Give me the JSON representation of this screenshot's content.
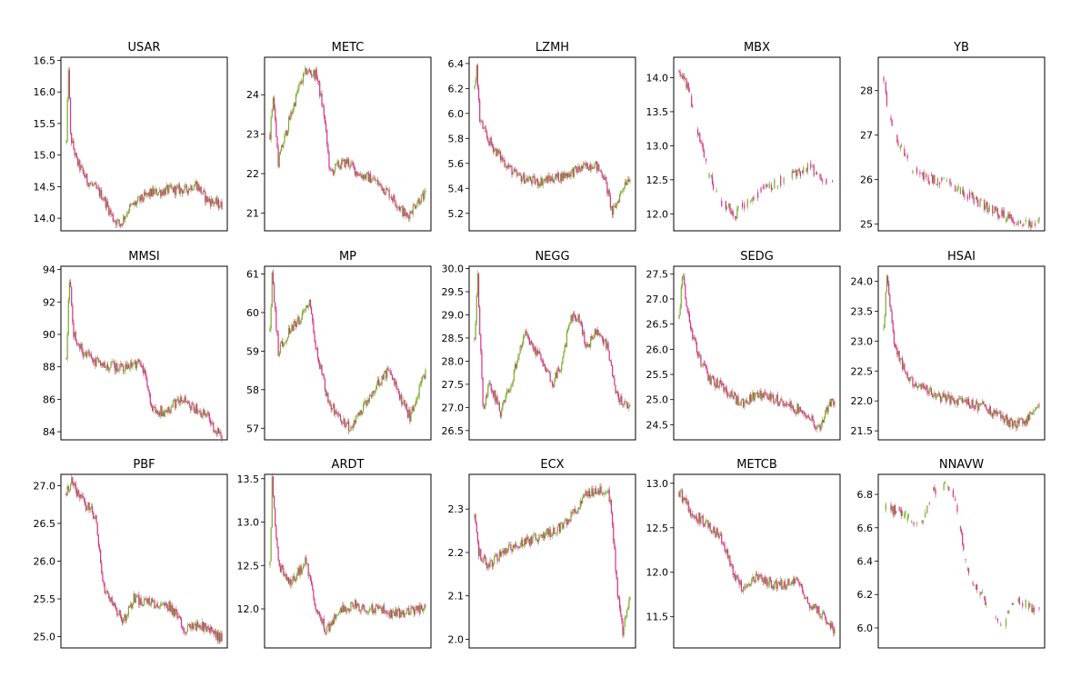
{
  "colors": {
    "up": "#7aab2e",
    "down": "#d63384"
  },
  "charts": [
    {
      "title": "USAR",
      "type": "candlestick",
      "ylim": [
        13.8,
        16.55
      ],
      "yticks": [
        "14.0",
        "14.5",
        "15.0",
        "15.5",
        "16.0",
        "16.5"
      ],
      "anchors": [
        [
          0,
          15.2
        ],
        [
          2,
          16.4
        ],
        [
          4,
          15.3
        ],
        [
          10,
          14.9
        ],
        [
          20,
          14.6
        ],
        [
          35,
          14.35
        ],
        [
          45,
          14.0
        ],
        [
          52,
          13.9
        ],
        [
          60,
          14.15
        ],
        [
          72,
          14.3
        ],
        [
          82,
          14.4
        ],
        [
          100,
          14.45
        ],
        [
          115,
          14.45
        ],
        [
          125,
          14.55
        ],
        [
          135,
          14.3
        ],
        [
          150,
          14.2
        ]
      ]
    },
    {
      "title": "METC",
      "type": "candlestick",
      "ylim": [
        20.55,
        24.95
      ],
      "yticks": [
        "21",
        "22",
        "23",
        "24"
      ],
      "anchors": [
        [
          0,
          23.0
        ],
        [
          3,
          24.0
        ],
        [
          8,
          22.3
        ],
        [
          18,
          23.3
        ],
        [
          28,
          24.2
        ],
        [
          35,
          24.6
        ],
        [
          45,
          24.5
        ],
        [
          52,
          23.5
        ],
        [
          58,
          22.0
        ],
        [
          65,
          22.2
        ],
        [
          75,
          22.3
        ],
        [
          85,
          22.0
        ],
        [
          100,
          21.85
        ],
        [
          115,
          21.5
        ],
        [
          132,
          20.9
        ],
        [
          142,
          21.3
        ],
        [
          150,
          21.45
        ]
      ]
    },
    {
      "title": "LZMH",
      "type": "candlestick",
      "ylim": [
        5.06,
        6.45
      ],
      "yticks": [
        "5.2",
        "5.4",
        "5.6",
        "5.8",
        "6.0",
        "6.2",
        "6.4"
      ],
      "anchors": [
        [
          0,
          6.2
        ],
        [
          2,
          6.38
        ],
        [
          5,
          5.95
        ],
        [
          12,
          5.8
        ],
        [
          25,
          5.65
        ],
        [
          40,
          5.5
        ],
        [
          60,
          5.45
        ],
        [
          85,
          5.5
        ],
        [
          100,
          5.55
        ],
        [
          115,
          5.6
        ],
        [
          125,
          5.5
        ],
        [
          133,
          5.2
        ],
        [
          138,
          5.3
        ],
        [
          145,
          5.45
        ],
        [
          150,
          5.5
        ]
      ]
    },
    {
      "title": "MBX",
      "type": "candlestick",
      "ylim": [
        11.75,
        14.3
      ],
      "yticks": [
        "12.0",
        "12.5",
        "13.0",
        "13.5",
        "14.0"
      ],
      "anchors": [
        [
          0,
          14.1
        ],
        [
          8,
          13.9
        ],
        [
          18,
          13.2
        ],
        [
          28,
          12.6
        ],
        [
          40,
          12.2
        ],
        [
          55,
          12.0
        ],
        [
          70,
          12.25
        ],
        [
          85,
          12.4
        ],
        [
          100,
          12.5
        ],
        [
          115,
          12.6
        ],
        [
          125,
          12.7
        ],
        [
          140,
          12.5
        ],
        [
          150,
          12.45
        ]
      ]
    },
    {
      "title": "YB",
      "type": "candlestick",
      "ylim": [
        24.85,
        28.75
      ],
      "yticks": [
        "25",
        "26",
        "27",
        "28"
      ],
      "anchors": [
        [
          0,
          28.3
        ],
        [
          4,
          27.5
        ],
        [
          15,
          26.8
        ],
        [
          28,
          26.2
        ],
        [
          45,
          26.0
        ],
        [
          65,
          25.9
        ],
        [
          85,
          25.6
        ],
        [
          105,
          25.3
        ],
        [
          125,
          25.1
        ],
        [
          140,
          25.0
        ],
        [
          150,
          25.1
        ]
      ]
    },
    {
      "title": "MMSI",
      "type": "candlestick",
      "ylim": [
        83.5,
        94.2
      ],
      "yticks": [
        "84",
        "86",
        "88",
        "90",
        "92",
        "94"
      ],
      "anchors": [
        [
          0,
          88.5
        ],
        [
          3,
          93.5
        ],
        [
          7,
          90.0
        ],
        [
          15,
          89.0
        ],
        [
          30,
          88.2
        ],
        [
          50,
          88.0
        ],
        [
          68,
          88.2
        ],
        [
          75,
          87.8
        ],
        [
          82,
          85.5
        ],
        [
          95,
          85.2
        ],
        [
          110,
          86.0
        ],
        [
          120,
          85.6
        ],
        [
          135,
          85.0
        ],
        [
          145,
          84.0
        ],
        [
          150,
          83.8
        ]
      ]
    },
    {
      "title": "MP",
      "type": "candlestick",
      "ylim": [
        56.7,
        61.2
      ],
      "yticks": [
        "57",
        "58",
        "59",
        "60",
        "61"
      ],
      "anchors": [
        [
          0,
          59.5
        ],
        [
          2,
          61.0
        ],
        [
          8,
          59.0
        ],
        [
          18,
          59.5
        ],
        [
          28,
          59.8
        ],
        [
          38,
          60.2
        ],
        [
          45,
          59.0
        ],
        [
          55,
          57.8
        ],
        [
          65,
          57.3
        ],
        [
          78,
          57.0
        ],
        [
          90,
          57.5
        ],
        [
          105,
          58.2
        ],
        [
          115,
          58.5
        ],
        [
          125,
          57.8
        ],
        [
          135,
          57.3
        ],
        [
          150,
          58.5
        ]
      ]
    },
    {
      "title": "NEGG",
      "type": "candlestick",
      "ylim": [
        26.3,
        30.05
      ],
      "yticks": [
        "26.5",
        "27.0",
        "27.5",
        "28.0",
        "28.5",
        "29.0",
        "29.5",
        "30.0"
      ],
      "anchors": [
        [
          0,
          28.5
        ],
        [
          3,
          29.8
        ],
        [
          8,
          27.0
        ],
        [
          15,
          27.5
        ],
        [
          25,
          26.9
        ],
        [
          35,
          27.5
        ],
        [
          48,
          28.6
        ],
        [
          60,
          28.2
        ],
        [
          75,
          27.5
        ],
        [
          85,
          28.0
        ],
        [
          92,
          28.9
        ],
        [
          100,
          29.0
        ],
        [
          108,
          28.3
        ],
        [
          118,
          28.7
        ],
        [
          128,
          28.3
        ],
        [
          138,
          27.2
        ],
        [
          150,
          27.0
        ]
      ]
    },
    {
      "title": "SEDG",
      "type": "candlestick",
      "ylim": [
        24.2,
        27.65
      ],
      "yticks": [
        "24.5",
        "25.0",
        "25.5",
        "26.0",
        "26.5",
        "27.0",
        "27.5"
      ],
      "anchors": [
        [
          0,
          26.6
        ],
        [
          3,
          27.5
        ],
        [
          10,
          26.5
        ],
        [
          20,
          25.8
        ],
        [
          30,
          25.4
        ],
        [
          45,
          25.2
        ],
        [
          60,
          24.9
        ],
        [
          75,
          25.1
        ],
        [
          95,
          25.0
        ],
        [
          110,
          24.85
        ],
        [
          125,
          24.7
        ],
        [
          135,
          24.4
        ],
        [
          145,
          24.9
        ],
        [
          150,
          25.0
        ]
      ]
    },
    {
      "title": "HSAI",
      "type": "candlestick",
      "ylim": [
        21.35,
        24.25
      ],
      "yticks": [
        "21.5",
        "22.0",
        "22.5",
        "23.0",
        "23.5",
        "24.0"
      ],
      "anchors": [
        [
          0,
          23.2
        ],
        [
          3,
          24.1
        ],
        [
          10,
          23.0
        ],
        [
          22,
          22.4
        ],
        [
          38,
          22.2
        ],
        [
          55,
          22.05
        ],
        [
          75,
          22.0
        ],
        [
          95,
          21.9
        ],
        [
          112,
          21.75
        ],
        [
          125,
          21.6
        ],
        [
          135,
          21.65
        ],
        [
          145,
          21.85
        ],
        [
          150,
          21.9
        ]
      ]
    },
    {
      "title": "PBF",
      "type": "candlestick",
      "ylim": [
        24.85,
        27.15
      ],
      "yticks": [
        "25.0",
        "25.5",
        "26.0",
        "26.5",
        "27.0"
      ],
      "anchors": [
        [
          0,
          26.9
        ],
        [
          5,
          27.05
        ],
        [
          15,
          26.8
        ],
        [
          28,
          26.6
        ],
        [
          35,
          25.7
        ],
        [
          45,
          25.4
        ],
        [
          55,
          25.2
        ],
        [
          65,
          25.5
        ],
        [
          80,
          25.45
        ],
        [
          100,
          25.4
        ],
        [
          115,
          25.1
        ],
        [
          130,
          25.15
        ],
        [
          150,
          24.98
        ]
      ]
    },
    {
      "title": "ARDT",
      "type": "candlestick",
      "ylim": [
        11.55,
        13.55
      ],
      "yticks": [
        "12.0",
        "12.5",
        "13.0",
        "13.5"
      ],
      "anchors": [
        [
          0,
          12.5
        ],
        [
          2,
          13.5
        ],
        [
          8,
          12.5
        ],
        [
          20,
          12.3
        ],
        [
          35,
          12.55
        ],
        [
          45,
          11.95
        ],
        [
          55,
          11.75
        ],
        [
          65,
          11.95
        ],
        [
          80,
          12.05
        ],
        [
          100,
          12.0
        ],
        [
          120,
          11.95
        ],
        [
          150,
          12.0
        ]
      ]
    },
    {
      "title": "ECX",
      "type": "candlestick",
      "ylim": [
        1.98,
        2.38
      ],
      "yticks": [
        "2.0",
        "2.1",
        "2.2",
        "2.3"
      ],
      "anchors": [
        [
          0,
          2.28
        ],
        [
          4,
          2.2
        ],
        [
          12,
          2.17
        ],
        [
          28,
          2.2
        ],
        [
          45,
          2.22
        ],
        [
          65,
          2.24
        ],
        [
          85,
          2.26
        ],
        [
          100,
          2.3
        ],
        [
          108,
          2.34
        ],
        [
          128,
          2.345
        ],
        [
          132,
          2.3
        ],
        [
          138,
          2.1
        ],
        [
          143,
          2.02
        ],
        [
          150,
          2.09
        ]
      ]
    },
    {
      "title": "METCB",
      "type": "candlestick",
      "ylim": [
        11.15,
        13.1
      ],
      "yticks": [
        "11.5",
        "12.0",
        "12.5",
        "13.0"
      ],
      "anchors": [
        [
          0,
          12.9
        ],
        [
          10,
          12.7
        ],
        [
          25,
          12.55
        ],
        [
          40,
          12.4
        ],
        [
          52,
          12.0
        ],
        [
          62,
          11.8
        ],
        [
          75,
          11.95
        ],
        [
          95,
          11.85
        ],
        [
          115,
          11.9
        ],
        [
          125,
          11.65
        ],
        [
          140,
          11.5
        ],
        [
          150,
          11.35
        ]
      ]
    },
    {
      "title": "NNAVW",
      "type": "candlestick",
      "ylim": [
        5.88,
        6.92
      ],
      "yticks": [
        "6.0",
        "6.2",
        "6.4",
        "6.6",
        "6.8"
      ],
      "anchors": [
        [
          0,
          6.72
        ],
        [
          15,
          6.7
        ],
        [
          28,
          6.65
        ],
        [
          35,
          6.62
        ],
        [
          48,
          6.82
        ],
        [
          60,
          6.86
        ],
        [
          68,
          6.78
        ],
        [
          82,
          6.3
        ],
        [
          95,
          6.2
        ],
        [
          105,
          6.05
        ],
        [
          115,
          6.0
        ],
        [
          125,
          6.18
        ],
        [
          135,
          6.15
        ],
        [
          150,
          6.1
        ]
      ]
    }
  ]
}
